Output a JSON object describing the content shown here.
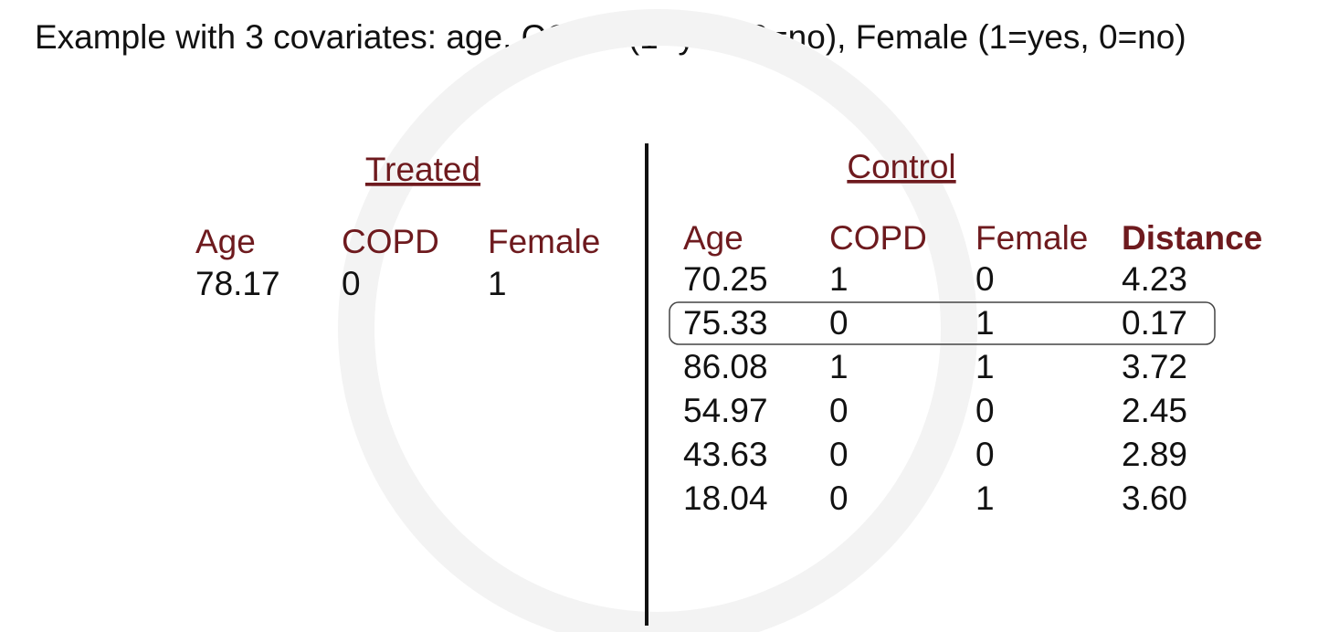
{
  "title": "Example with 3 covariates: age, COPD (1=yes, 0=no), Female (1=yes, 0=no)",
  "treated": {
    "heading": "Treated",
    "columns": [
      "Age",
      "COPD",
      "Female"
    ],
    "rows": [
      [
        "78.17",
        "0",
        "1"
      ]
    ]
  },
  "control": {
    "heading": "Control",
    "columns": [
      "Age",
      "COPD",
      "Female",
      "Distance"
    ],
    "rows": [
      [
        "70.25",
        "1",
        "0",
        "4.23"
      ],
      [
        "75.33",
        "0",
        "1",
        "0.17"
      ],
      [
        "86.08",
        "1",
        "1",
        "3.72"
      ],
      [
        "54.97",
        "0",
        "0",
        "2.45"
      ],
      [
        "43.63",
        "0",
        "0",
        "2.89"
      ],
      [
        "18.04",
        "0",
        "1",
        "3.60"
      ]
    ]
  }
}
